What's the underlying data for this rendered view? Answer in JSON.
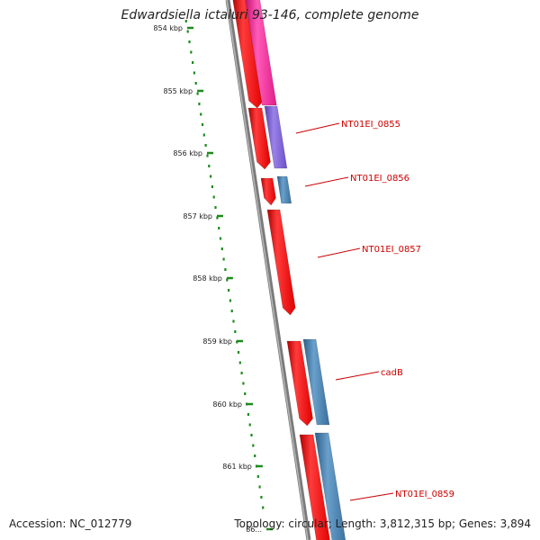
{
  "title": "Edwardsiella ictaluri 93-146, complete genome",
  "accession": "Accession: NC_012779",
  "topology": "Topology: circular; Length: 3,812,315 bp; Genes: 3,894",
  "colors": {
    "backbone": "#8a8a8a",
    "ruler": "#1e8a1e",
    "cds_forward": "#ff0000",
    "cds_reverse_blue": "#4682b4",
    "cds_pink": "#ff2a9d",
    "cds_purple": "#7b5fd0",
    "label": "#cc0000",
    "tick_text": "#222222"
  },
  "ruler_ticks": [
    "854 kbp",
    "855 kbp",
    "856 kbp",
    "857 kbp",
    "858 kbp",
    "859 kbp",
    "860 kbp",
    "861 kbp",
    "86..."
  ],
  "gene_labels": [
    "NT01EI_0855",
    "NT01EI_0856",
    "NT01EI_0857",
    "cadB",
    "NT01EI_0859"
  ]
}
